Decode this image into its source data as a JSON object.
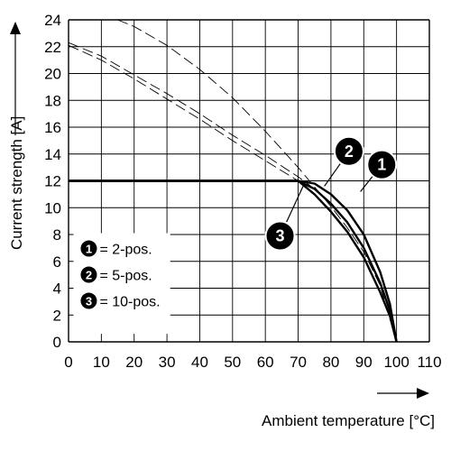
{
  "chart_data": {
    "type": "line",
    "xlabel": "Ambient temperature [°C]",
    "ylabel": "Current strength [A]",
    "xlim": [
      0,
      110
    ],
    "ylim": [
      0,
      24
    ],
    "x_ticks": [
      0,
      10,
      20,
      30,
      40,
      50,
      60,
      70,
      80,
      90,
      100,
      110
    ],
    "y_ticks": [
      0,
      2,
      4,
      6,
      8,
      10,
      12,
      14,
      16,
      18,
      20,
      22,
      24
    ],
    "grid": true,
    "series": [
      {
        "name": "2-pos.",
        "marker": "1",
        "style": "solid",
        "points": [
          [
            0,
            12
          ],
          [
            70,
            12
          ],
          [
            75,
            11.8
          ],
          [
            80,
            11.0
          ],
          [
            85,
            9.8
          ],
          [
            90,
            8.0
          ],
          [
            95,
            5.2
          ],
          [
            98,
            2.8
          ],
          [
            100,
            0
          ]
        ]
      },
      {
        "name": "5-pos.",
        "marker": "2",
        "style": "solid",
        "points": [
          [
            0,
            12
          ],
          [
            70,
            12
          ],
          [
            75,
            11.4
          ],
          [
            80,
            10.3
          ],
          [
            85,
            8.9
          ],
          [
            90,
            7.0
          ],
          [
            95,
            4.4
          ],
          [
            98,
            2.3
          ],
          [
            100,
            0
          ]
        ]
      },
      {
        "name": "10-pos.",
        "marker": "3",
        "style": "solid",
        "points": [
          [
            0,
            12
          ],
          [
            70,
            12
          ],
          [
            75,
            11.0
          ],
          [
            80,
            9.7
          ],
          [
            85,
            8.2
          ],
          [
            90,
            6.3
          ],
          [
            95,
            3.7
          ],
          [
            98,
            1.9
          ],
          [
            100,
            0
          ]
        ]
      },
      {
        "name": "",
        "style": "dashed",
        "points": [
          [
            15,
            24
          ],
          [
            20,
            23.5
          ],
          [
            30,
            22.1
          ],
          [
            40,
            20.3
          ],
          [
            50,
            18.2
          ],
          [
            60,
            15.7
          ],
          [
            70,
            13.0
          ],
          [
            80,
            10.1
          ],
          [
            85,
            8.5
          ],
          [
            90,
            6.7
          ],
          [
            95,
            4.2
          ],
          [
            100,
            0
          ]
        ]
      },
      {
        "name": "",
        "style": "dashed",
        "points": [
          [
            0,
            22.3
          ],
          [
            10,
            21.3
          ],
          [
            20,
            19.9
          ],
          [
            30,
            18.5
          ],
          [
            40,
            17.0
          ],
          [
            50,
            15.4
          ],
          [
            60,
            13.9
          ],
          [
            70,
            12.3
          ],
          [
            75,
            11.4
          ]
        ]
      },
      {
        "name": "",
        "style": "dashed",
        "points": [
          [
            0,
            22.1
          ],
          [
            10,
            21.0
          ],
          [
            20,
            19.6
          ],
          [
            30,
            18.1
          ],
          [
            40,
            16.6
          ],
          [
            50,
            15.0
          ],
          [
            60,
            13.5
          ],
          [
            70,
            12.0
          ]
        ]
      }
    ],
    "legend": {
      "placement": "bottom-left",
      "items": [
        {
          "marker": "1",
          "label": "= 2-pos."
        },
        {
          "marker": "2",
          "label": "= 5-pos."
        },
        {
          "marker": "3",
          "label": "= 10-pos."
        }
      ]
    },
    "callouts": [
      "1",
      "2",
      "3"
    ]
  }
}
